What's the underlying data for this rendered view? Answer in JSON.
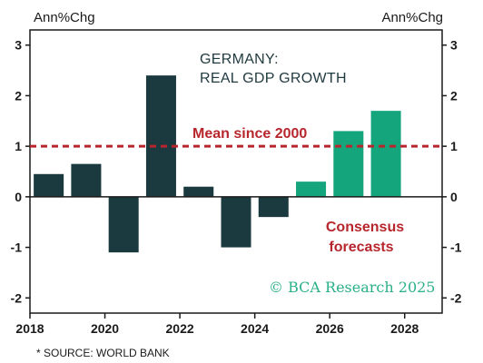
{
  "chart_data": {
    "type": "bar",
    "title_line1": "GERMANY:",
    "title_line2": "REAL GDP GROWTH",
    "y_unit_left": "Ann%Chg",
    "y_unit_right": "Ann%Chg",
    "ylim": [
      -2.3,
      3.3
    ],
    "yticks": [
      -2,
      -1,
      0,
      1,
      2,
      3
    ],
    "xlim": [
      2018,
      2029
    ],
    "xticks": [
      2018,
      2020,
      2022,
      2024,
      2026,
      2028
    ],
    "grid": false,
    "series": [
      {
        "x": [
          2018.5,
          2019.5,
          2020.5,
          2021.5,
          2022.5,
          2023.5,
          2024.5
        ],
        "values": [
          0.45,
          0.65,
          -1.1,
          2.4,
          0.2,
          -1.0,
          -0.4
        ],
        "color": "#1a3a3f"
      },
      {
        "x": [
          2025.5,
          2026.5,
          2027.5
        ],
        "values": [
          0.3,
          1.3,
          1.7
        ],
        "color": "#15a57d"
      }
    ],
    "reference_line": {
      "value": 1.0,
      "label": "Mean since 2000",
      "color": "#b7262d",
      "style": "dashed"
    },
    "annotation_line1": "Consensus",
    "annotation_line2": "forecasts",
    "watermark": "© BCA Research 2025",
    "source": "* SOURCE: WORLD BANK"
  }
}
